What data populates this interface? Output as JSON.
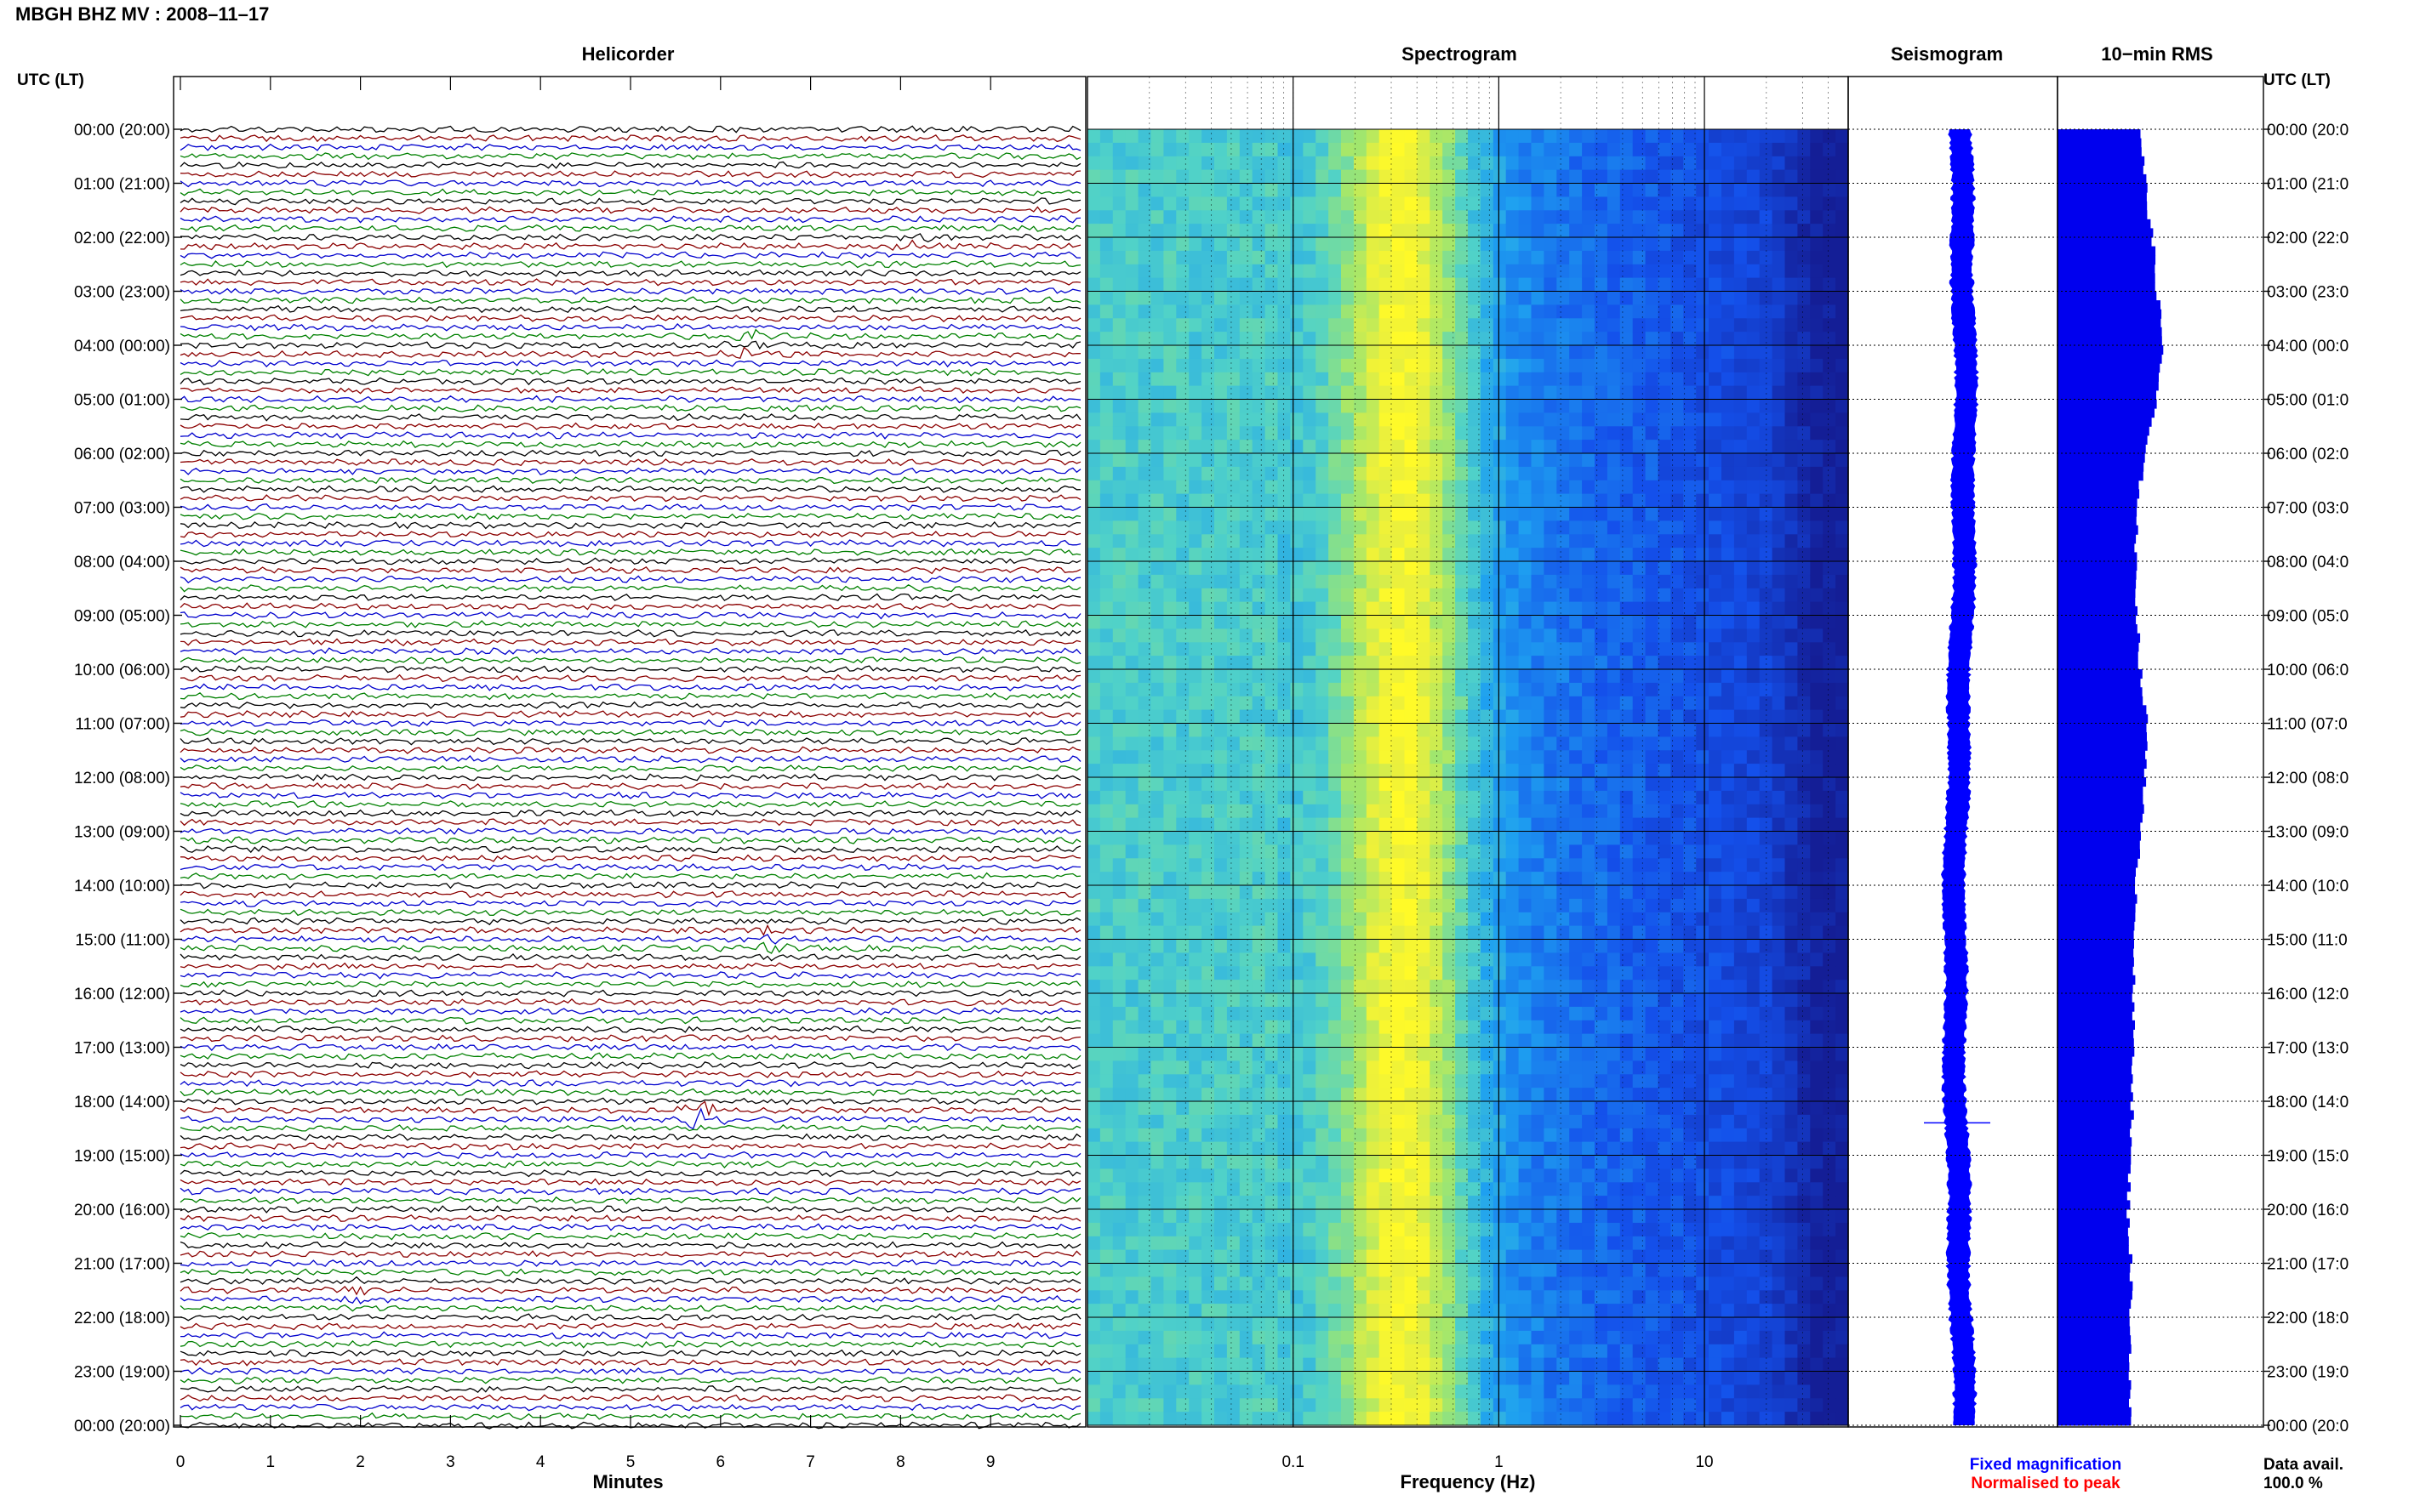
{
  "header": {
    "title": "MBGH BHZ MV : 2008–11–17",
    "utc_left": "UTC (LT)",
    "utc_right": "UTC (LT)"
  },
  "panels": {
    "helicorder": "Helicorder",
    "spectrogram": "Spectrogram",
    "seismogram": "Seismogram",
    "rms": "10−min RMS"
  },
  "footer": {
    "helicorder_xlabel": "Minutes",
    "spectrogram_xlabel": "Frequency (Hz)",
    "legend_fixed": "Fixed magnification",
    "legend_normalised": "Normalised to peak",
    "data_avail_label": "Data avail.",
    "data_avail_value": "100.0 %"
  },
  "colors": {
    "fixed": "#0000ff",
    "normalised": "#ff0000",
    "trace_cycle": [
      "#000000",
      "#8b0000",
      "#0000cd",
      "#008000"
    ],
    "rms_bar": "#0000ee"
  },
  "chart_data": [
    {
      "type": "line",
      "name": "helicorder",
      "title": "Helicorder",
      "xlabel": "Minutes",
      "x_ticks": [
        0,
        1,
        2,
        3,
        4,
        5,
        6,
        7,
        8,
        9
      ],
      "xlim": [
        0,
        10
      ],
      "lines_per_hour": 6,
      "y_ticks_left": [
        "00:00 (20:00)",
        "01:00 (21:00)",
        "02:00 (22:00)",
        "03:00 (23:00)",
        "04:00 (00:00)",
        "05:00 (01:00)",
        "06:00 (02:00)",
        "07:00 (03:00)",
        "08:00 (04:00)",
        "09:00 (05:00)",
        "10:00 (06:00)",
        "11:00 (07:00)",
        "12:00 (08:00)",
        "13:00 (09:00)",
        "14:00 (10:00)",
        "15:00 (11:00)",
        "16:00 (12:00)",
        "17:00 (13:00)",
        "18:00 (14:00)",
        "19:00 (15:00)",
        "20:00 (16:00)",
        "21:00 (17:00)",
        "22:00 (18:00)",
        "23:00 (19:00)",
        "00:00 (20:00)"
      ],
      "y_ticks_right": [
        "00:00 (20:0",
        "01:00 (21:0",
        "02:00 (22:0",
        "03:00 (23:0",
        "04:00 (00:0",
        "05:00 (01:0",
        "06:00 (02:0",
        "07:00 (03:0",
        "08:00 (04:0",
        "09:00 (05:0",
        "10:00 (06:0",
        "11:00 (07:0",
        "12:00 (08:0",
        "13:00 (09:0",
        "14:00 (10:0",
        "15:00 (11:0",
        "16:00 (12:0",
        "17:00 (13:0",
        "18:00 (14:0",
        "19:00 (15:0",
        "20:00 (16:0",
        "21:00 (17:0",
        "22:00 (18:0",
        "23:00 (19:0",
        "00:00 (20:0"
      ],
      "events": [
        {
          "hour": 18.2,
          "minute": 5.8,
          "amplitude": 3.0
        },
        {
          "hour": 4.0,
          "minute": 6.3,
          "amplitude": 1.5
        },
        {
          "hour": 2.1,
          "minute": 8.1,
          "amplitude": 1.2
        },
        {
          "hour": 15.0,
          "minute": 6.5,
          "amplitude": 1.2
        },
        {
          "hour": 21.5,
          "minute": 2.0,
          "amplitude": 1.1
        }
      ]
    },
    {
      "type": "heatmap",
      "name": "spectrogram",
      "title": "Spectrogram",
      "xlabel": "Frequency (Hz)",
      "x_scale": "log",
      "xlim": [
        0.01,
        50
      ],
      "x_ticks": [
        0.1,
        1,
        10
      ],
      "x_tick_labels": [
        "0.1",
        "1",
        "10"
      ],
      "ylim_hours": [
        0,
        24
      ],
      "peak_band_hz": [
        0.2,
        0.6
      ],
      "peak_color": "yellow"
    },
    {
      "type": "line",
      "name": "seismogram",
      "title": "Seismogram",
      "ylim_hours": [
        0,
        24
      ],
      "spike_hour": 18.4
    },
    {
      "type": "bar",
      "name": "10-min RMS",
      "title": "10−min RMS",
      "ylim_hours": [
        0,
        24
      ],
      "bin_minutes": 10,
      "hourly_values": [
        0.62,
        0.66,
        0.71,
        0.75,
        0.79,
        0.73,
        0.64,
        0.6,
        0.58,
        0.6,
        0.62,
        0.67,
        0.66,
        0.61,
        0.59,
        0.58,
        0.56,
        0.57,
        0.56,
        0.54,
        0.53,
        0.55,
        0.55,
        0.54
      ]
    }
  ]
}
